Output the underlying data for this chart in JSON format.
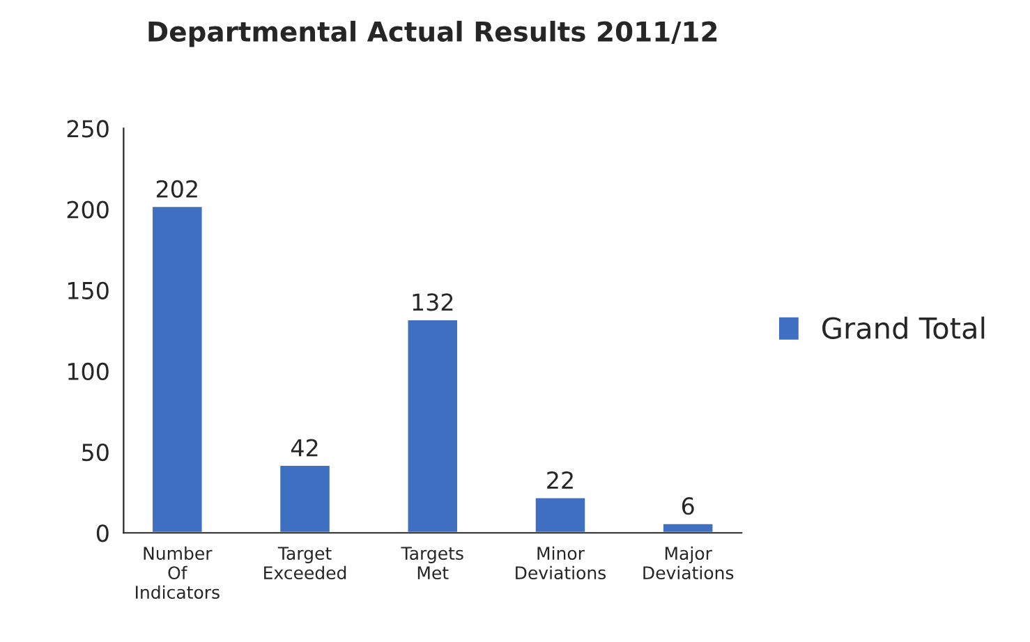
{
  "chart_data": {
    "type": "bar",
    "title": "Departmental Actual Results 2011/12",
    "categories": [
      "Number\nOf\nIndicators",
      "Target\nExceeded",
      "Targets\nMet",
      "Minor\nDeviations",
      "Major\nDeviations"
    ],
    "series": [
      {
        "name": "Grand Total",
        "color": "#3f6fc0",
        "values": [
          202,
          42,
          132,
          22,
          6
        ]
      }
    ],
    "ylim": [
      0,
      250
    ],
    "yticks": [
      0,
      50,
      100,
      150,
      200,
      250
    ],
    "data_labels": true,
    "legend": "right",
    "grid": false
  }
}
